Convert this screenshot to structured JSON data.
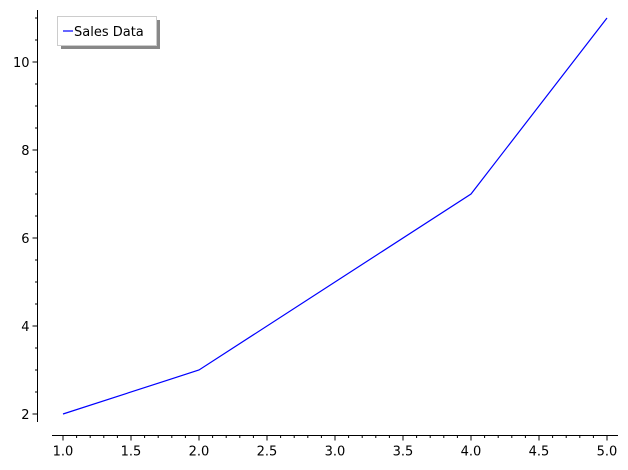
{
  "chart_data": {
    "type": "line",
    "title": "",
    "xlabel": "",
    "ylabel": "",
    "xlim": [
      1.0,
      5.0
    ],
    "ylim": [
      2,
      11
    ],
    "grid": false,
    "legend_position": "top-left",
    "x_ticks": [
      1.0,
      1.5,
      2.0,
      2.5,
      3.0,
      3.5,
      4.0,
      4.5,
      5.0
    ],
    "x_tick_labels": [
      "1.0",
      "1.5",
      "2.0",
      "2.5",
      "3.0",
      "3.5",
      "4.0",
      "4.5",
      "5.0"
    ],
    "y_ticks": [
      2,
      4,
      6,
      8,
      10
    ],
    "y_tick_labels": [
      "2",
      "4",
      "6",
      "8",
      "10"
    ],
    "series": [
      {
        "name": "Sales Data",
        "color": "#0000ff",
        "x": [
          1,
          2,
          3,
          4,
          5
        ],
        "y": [
          2,
          3,
          5,
          7,
          11
        ]
      }
    ]
  }
}
